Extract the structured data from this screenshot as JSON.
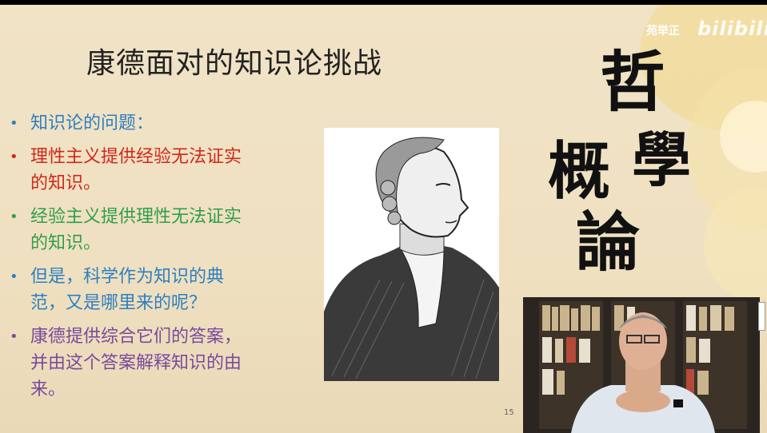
{
  "slide": {
    "title": "康德面对的知识论挑战",
    "bullets": [
      {
        "text": "知识论的问题：",
        "color": "#2e7fc1"
      },
      {
        "text": "理性主义提供经验无法证实的知识。",
        "color": "#d0271b"
      },
      {
        "text": "经验主义提供理性无法证实的知识。",
        "color": "#2f9e4b"
      },
      {
        "text": "但是，科学作为知识的典范，又是哪里来的呢？",
        "color": "#2e7fc1"
      },
      {
        "text": "康德提供综合它们的答案，并由这个答案解释知识的由来。",
        "color": "#7a4a9c"
      }
    ],
    "calligraphy": [
      "哲",
      "學",
      "概",
      "論"
    ],
    "page_number": "15"
  },
  "watermark": {
    "uploader": "苑举正",
    "platform": "bilibili"
  }
}
